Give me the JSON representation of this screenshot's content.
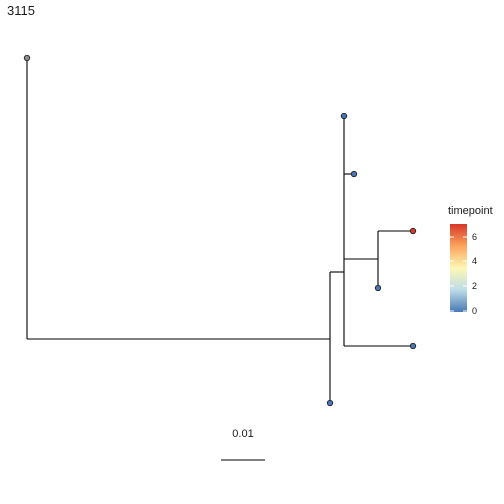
{
  "title": "3115",
  "legend": {
    "title": "timepoint",
    "ticks": [
      "0",
      "2",
      "4",
      "6"
    ],
    "colors": [
      "#4a78b4",
      "#bcdde8",
      "#fdf7b5",
      "#fba45b",
      "#d7372a"
    ]
  },
  "scale_bar": {
    "label": "0.01"
  },
  "tree": {
    "tip_fill_colors": {
      "grey": "#8c8c8c",
      "blue": "#4876b6",
      "red": "#d7392b"
    }
  }
}
